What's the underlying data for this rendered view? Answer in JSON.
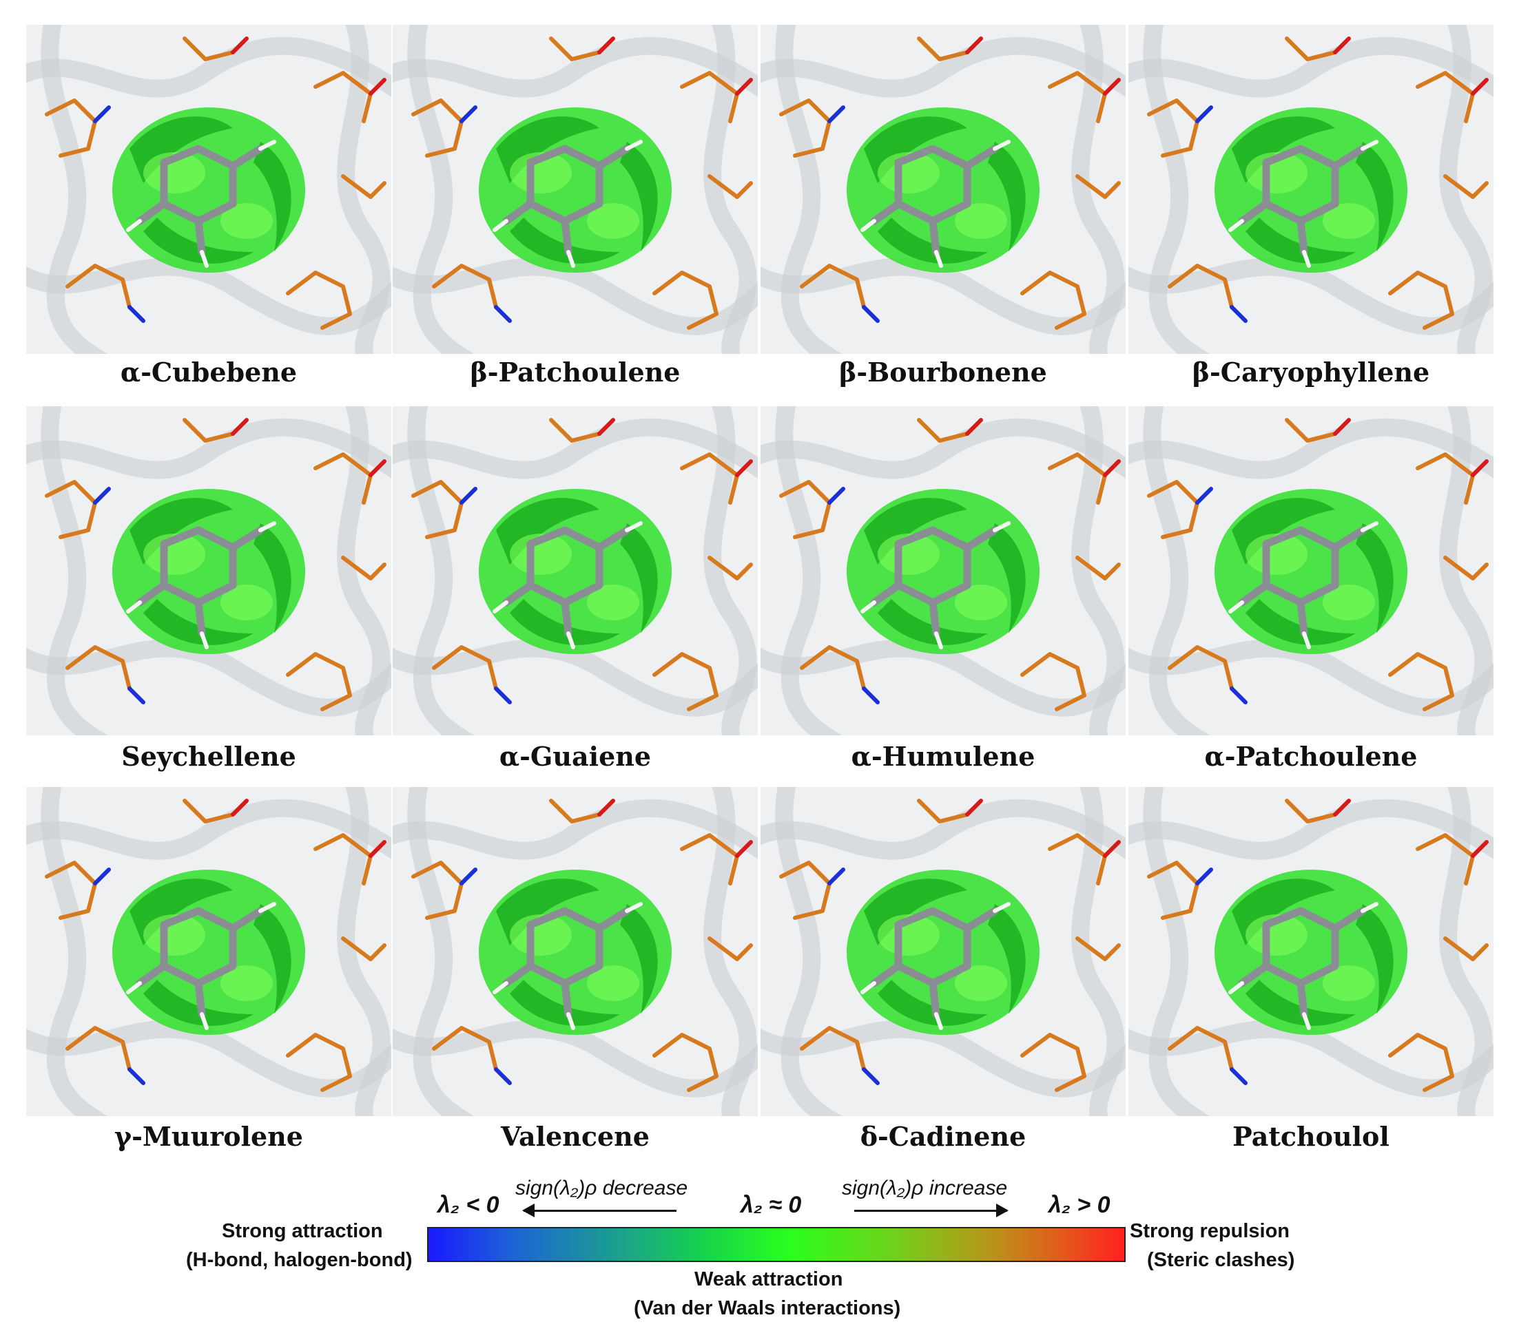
{
  "panels": [
    {
      "label": "α-Cubebene"
    },
    {
      "label": "β-Patchoulene"
    },
    {
      "label": "β-Bourbonene"
    },
    {
      "label": "β-Caryophyllene"
    },
    {
      "label": "Seychellene"
    },
    {
      "label": "α-Guaiene"
    },
    {
      "label": "α-Humulene"
    },
    {
      "label": "α-Patchoulene"
    },
    {
      "label": "γ-Muurolene"
    },
    {
      "label": "Valencene"
    },
    {
      "label": "δ-Cadinene"
    },
    {
      "label": "Patchoulol"
    }
  ],
  "legend": {
    "lambda_neg": "λ₂ < 0",
    "lambda_zero": "λ₂ ≈ 0",
    "lambda_pos": "λ₂ > 0",
    "decrease_text": "sign(λ₂)ρ decrease",
    "increase_text": "sign(λ₂)ρ increase",
    "strong_attraction": "Strong attraction",
    "strong_attraction_sub": "(H-bond, halogen-bond)",
    "weak_attraction": "Weak attraction",
    "weak_attraction_sub": "(Van der Waals interactions)",
    "strong_repulsion": "Strong repulsion",
    "strong_repulsion_sub": "(Steric clashes)",
    "gradient_colors": [
      "#1a1aff",
      "#17d44a",
      "#2bff1e",
      "#ff2020"
    ]
  }
}
